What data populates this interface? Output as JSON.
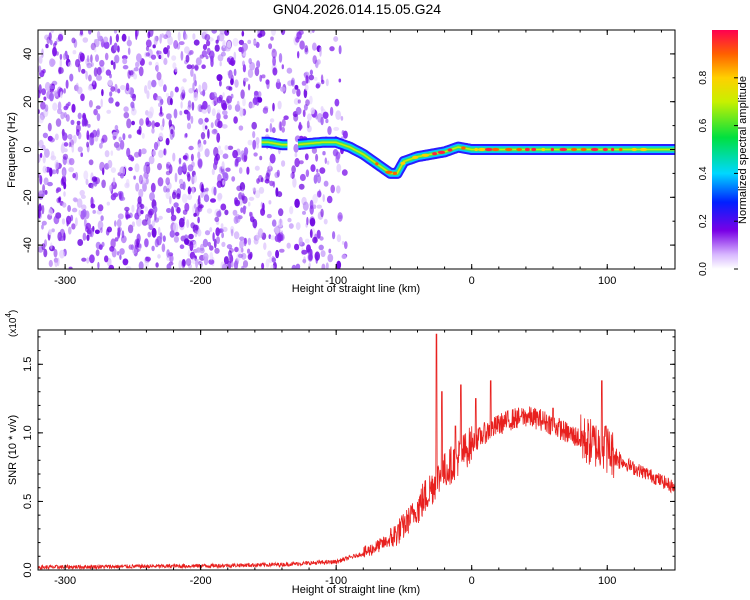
{
  "title": "GN04.2026.014.15.05.G24",
  "chart_data": [
    {
      "type": "heatmap",
      "title": "GN04.2026.014.15.05.G24",
      "xlabel": "Height of straight line (km)",
      "ylabel": "Frequency (Hz)",
      "xlim": [
        -320,
        150
      ],
      "ylim": [
        -50,
        50
      ],
      "x_ticks": [
        -300,
        -200,
        -100,
        0,
        100
      ],
      "y_ticks": [
        -40,
        -20,
        0,
        20,
        40
      ],
      "colorbar": {
        "label": "Normalized spectral amplitude",
        "range": [
          0,
          1
        ],
        "ticks": [
          0.0,
          0.2,
          0.4,
          0.6,
          0.8
        ]
      },
      "signal_track": {
        "x": [
          -155,
          -150,
          -140,
          -130,
          -110,
          -100,
          -90,
          -80,
          -70,
          -60,
          -55,
          -50,
          -40,
          -30,
          -20,
          -10,
          0,
          20,
          60,
          100,
          150
        ],
        "y": [
          3,
          3,
          2,
          2,
          3,
          3,
          1,
          -2,
          -6,
          -10,
          -10,
          -5,
          -3,
          -2,
          -1,
          1,
          0,
          0,
          0,
          0,
          0
        ]
      },
      "noise_region_x": [
        -320,
        -100
      ]
    },
    {
      "type": "line",
      "xlabel": "Height of straight line (km)",
      "ylabel": "SNR (10 * v/v)",
      "y_multiplier_label": "(x10",
      "y_multiplier_exp": "4",
      "xlim": [
        -320,
        150
      ],
      "ylim": [
        0,
        1.75
      ],
      "x_ticks": [
        -300,
        -200,
        -100,
        0,
        100
      ],
      "y_ticks": [
        0.0,
        0.5,
        1.0,
        1.5
      ],
      "series": [
        {
          "name": "SNR",
          "color": "#e8201e",
          "envelope": {
            "x": [
              -320,
              -200,
              -140,
              -120,
              -100,
              -80,
              -60,
              -50,
              -40,
              -30,
              -20,
              -10,
              0,
              10,
              20,
              30,
              40,
              50,
              60,
              70,
              80,
              90,
              100,
              110,
              120,
              130,
              140,
              150
            ],
            "y": [
              0.02,
              0.03,
              0.04,
              0.05,
              0.06,
              0.12,
              0.22,
              0.32,
              0.45,
              0.6,
              0.72,
              0.82,
              0.92,
              1.0,
              1.06,
              1.1,
              1.12,
              1.1,
              1.06,
              1.0,
              0.96,
              0.92,
              0.88,
              0.8,
              0.74,
              0.7,
              0.65,
              0.6
            ]
          },
          "spikes": {
            "x": [
              -26,
              -22,
              -12,
              -8,
              3,
              14,
              36,
              60,
              96,
              99
            ],
            "y": [
              1.72,
              1.3,
              1.05,
              1.35,
              1.25,
              1.38,
              1.12,
              1.18,
              1.38,
              1.05
            ]
          }
        }
      ]
    }
  ]
}
